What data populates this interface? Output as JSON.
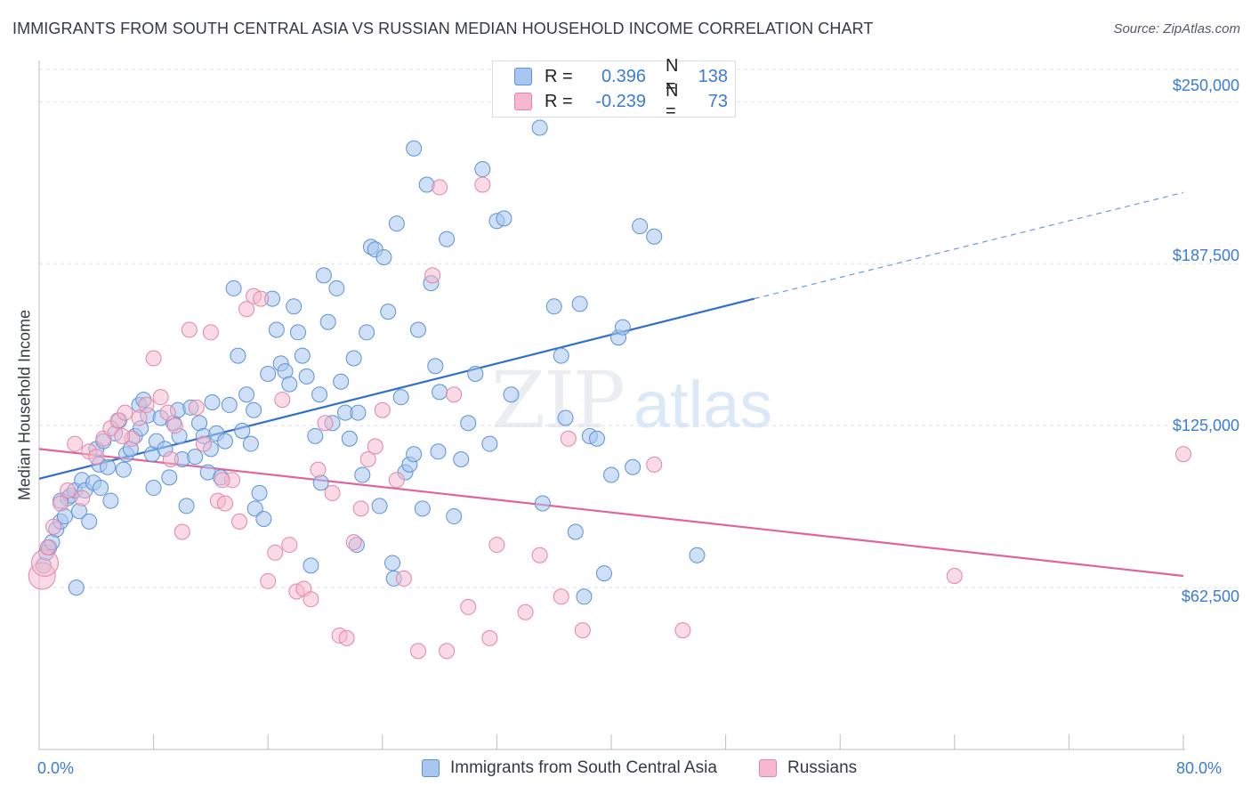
{
  "header": {
    "title": "IMMIGRANTS FROM SOUTH CENTRAL ASIA VS RUSSIAN MEDIAN HOUSEHOLD INCOME CORRELATION CHART",
    "source": "Source: ZipAtlas.com"
  },
  "watermark": {
    "zip": "ZIP",
    "atlas": "atlas"
  },
  "legend": {
    "rows": [
      {
        "r_label": "R =",
        "r_value": "0.396",
        "n_label": "N =",
        "n_value": "138",
        "color": "#a8c6ef"
      },
      {
        "r_label": "R =",
        "r_value": "-0.239",
        "n_label": "N =",
        "n_value": "73",
        "color": "#f5b8cc"
      }
    ]
  },
  "bottom_legend": {
    "items": [
      {
        "label": "Immigrants from South Central Asia",
        "color": "#a8c6ef"
      },
      {
        "label": "Russians",
        "color": "#f5b8cc"
      }
    ]
  },
  "axes": {
    "ylabel": "Median Household Income",
    "y_ticks": [
      "$250,000",
      "$187,500",
      "$125,000",
      "$62,500"
    ],
    "x_min_label": "0.0%",
    "x_max_label": "80.0%"
  },
  "colors": {
    "blue_fill": "#a8c6ef",
    "blue_stroke": "#5b92d8",
    "blue_line": "#2f6fcb",
    "pink_fill": "#f5b8cc",
    "pink_stroke": "#e484a6",
    "pink_line": "#e0659a",
    "grid": "#dde1e7",
    "tick_text": "#3a7bd5"
  },
  "chart_data": {
    "type": "scatter",
    "title": "IMMIGRANTS FROM SOUTH CENTRAL ASIA VS RUSSIAN MEDIAN HOUSEHOLD INCOME CORRELATION CHART",
    "xlabel": "",
    "ylabel": "Median Household Income",
    "xlim": [
      0,
      80
    ],
    "ylim": [
      0,
      262500
    ],
    "y_ticks": [
      62500,
      125000,
      187500,
      250000
    ],
    "grid": true,
    "legend_position": "top-center",
    "series": [
      {
        "name": "Immigrants from South Central Asia",
        "r": 0.396,
        "n": 138,
        "trend": {
          "x": [
            0,
            50
          ],
          "y": [
            104500,
            174000
          ],
          "dashed_extension": {
            "x": [
              50,
              80
            ],
            "y": [
              174000,
              215000
            ]
          }
        },
        "points": [
          [
            0.3,
            71000
          ],
          [
            0.5,
            76000
          ],
          [
            0.7,
            78000
          ],
          [
            0.9,
            80000
          ],
          [
            1.2,
            85000
          ],
          [
            1.5,
            88000
          ],
          [
            1.8,
            90000
          ],
          [
            2.0,
            97000
          ],
          [
            2.2,
            98000
          ],
          [
            2.5,
            100000
          ],
          [
            2.8,
            92000
          ],
          [
            3.0,
            104000
          ],
          [
            3.2,
            100000
          ],
          [
            3.5,
            88000
          ],
          [
            3.8,
            103000
          ],
          [
            4.0,
            116000
          ],
          [
            4.2,
            110000
          ],
          [
            4.5,
            119000
          ],
          [
            4.8,
            109000
          ],
          [
            5.0,
            96000
          ],
          [
            5.3,
            122000
          ],
          [
            5.6,
            127000
          ],
          [
            5.9,
            108000
          ],
          [
            6.1,
            114000
          ],
          [
            6.4,
            116000
          ],
          [
            6.7,
            121000
          ],
          [
            7.0,
            133000
          ],
          [
            7.3,
            135000
          ],
          [
            7.6,
            129000
          ],
          [
            7.9,
            114000
          ],
          [
            8.2,
            119000
          ],
          [
            8.5,
            128000
          ],
          [
            8.8,
            116000
          ],
          [
            9.1,
            105000
          ],
          [
            9.4,
            126000
          ],
          [
            9.7,
            131000
          ],
          [
            10.0,
            112000
          ],
          [
            10.3,
            94000
          ],
          [
            10.6,
            132000
          ],
          [
            10.9,
            113000
          ],
          [
            11.2,
            126000
          ],
          [
            11.5,
            121000
          ],
          [
            11.8,
            107000
          ],
          [
            12.1,
            134000
          ],
          [
            12.4,
            122000
          ],
          [
            12.7,
            105000
          ],
          [
            13.0,
            119000
          ],
          [
            13.3,
            133000
          ],
          [
            13.6,
            178000
          ],
          [
            13.9,
            152000
          ],
          [
            14.2,
            123000
          ],
          [
            14.5,
            137000
          ],
          [
            14.8,
            118000
          ],
          [
            15.1,
            93000
          ],
          [
            15.4,
            99000
          ],
          [
            15.7,
            89000
          ],
          [
            16.0,
            145000
          ],
          [
            16.3,
            174000
          ],
          [
            16.6,
            162000
          ],
          [
            16.9,
            149000
          ],
          [
            17.2,
            146000
          ],
          [
            17.5,
            141000
          ],
          [
            17.8,
            171000
          ],
          [
            18.1,
            161000
          ],
          [
            18.4,
            152000
          ],
          [
            18.7,
            144000
          ],
          [
            19.0,
            71000
          ],
          [
            19.3,
            121000
          ],
          [
            19.6,
            137000
          ],
          [
            19.9,
            183000
          ],
          [
            20.2,
            165000
          ],
          [
            20.5,
            126000
          ],
          [
            20.8,
            178000
          ],
          [
            21.1,
            142000
          ],
          [
            21.4,
            130000
          ],
          [
            21.7,
            120000
          ],
          [
            22.0,
            151000
          ],
          [
            22.3,
            130000
          ],
          [
            22.6,
            106000
          ],
          [
            22.9,
            161000
          ],
          [
            23.2,
            194000
          ],
          [
            23.5,
            193000
          ],
          [
            23.8,
            94000
          ],
          [
            24.1,
            190000
          ],
          [
            24.4,
            169000
          ],
          [
            24.7,
            72000
          ],
          [
            25.0,
            203000
          ],
          [
            25.3,
            136000
          ],
          [
            25.6,
            107000
          ],
          [
            25.9,
            110000
          ],
          [
            26.2,
            114000
          ],
          [
            26.5,
            162000
          ],
          [
            26.8,
            93000
          ],
          [
            27.1,
            218000
          ],
          [
            27.4,
            180000
          ],
          [
            27.7,
            148000
          ],
          [
            28.0,
            138000
          ],
          [
            28.5,
            197000
          ],
          [
            29.0,
            90000
          ],
          [
            29.5,
            112000
          ],
          [
            30.0,
            126000
          ],
          [
            30.5,
            145000
          ],
          [
            31.0,
            224000
          ],
          [
            31.5,
            118000
          ],
          [
            32.0,
            204000
          ],
          [
            32.5,
            205000
          ],
          [
            33.0,
            137000
          ],
          [
            35.0,
            240000
          ],
          [
            36.0,
            171000
          ],
          [
            36.5,
            152000
          ],
          [
            37.5,
            84000
          ],
          [
            37.8,
            172000
          ],
          [
            38.1,
            59000
          ],
          [
            38.5,
            121000
          ],
          [
            39.0,
            120000
          ],
          [
            39.5,
            68000
          ],
          [
            40.0,
            106000
          ],
          [
            40.5,
            159000
          ],
          [
            40.8,
            163000
          ],
          [
            41.5,
            109000
          ],
          [
            42.0,
            202000
          ],
          [
            43.0,
            198000
          ],
          [
            46.0,
            75000
          ],
          [
            2.6,
            62500
          ],
          [
            26.2,
            232000
          ],
          [
            1.5,
            96000
          ],
          [
            4.3,
            101000
          ],
          [
            7.1,
            124000
          ],
          [
            9.8,
            121000
          ],
          [
            12.0,
            116000
          ],
          [
            15.0,
            131000
          ],
          [
            19.7,
            103000
          ],
          [
            22.2,
            79000
          ],
          [
            24.8,
            66000
          ],
          [
            27.9,
            115000
          ],
          [
            35.2,
            95000
          ],
          [
            36.8,
            128000
          ],
          [
            8.0,
            101000
          ]
        ]
      },
      {
        "name": "Russians",
        "r": -0.239,
        "n": 73,
        "trend": {
          "x": [
            0,
            80
          ],
          "y": [
            116000,
            67000
          ]
        },
        "points": [
          [
            0.2,
            67000
          ],
          [
            0.4,
            72000
          ],
          [
            0.6,
            78000
          ],
          [
            1.0,
            86000
          ],
          [
            1.5,
            95000
          ],
          [
            2.0,
            100000
          ],
          [
            2.5,
            118000
          ],
          [
            3.0,
            97000
          ],
          [
            3.5,
            115000
          ],
          [
            4.0,
            113000
          ],
          [
            4.5,
            120000
          ],
          [
            5.0,
            124000
          ],
          [
            5.5,
            127000
          ],
          [
            6.0,
            130000
          ],
          [
            6.5,
            120000
          ],
          [
            7.0,
            128000
          ],
          [
            7.5,
            133000
          ],
          [
            8.0,
            151000
          ],
          [
            8.5,
            136000
          ],
          [
            9.0,
            130000
          ],
          [
            9.5,
            125000
          ],
          [
            10.0,
            84000
          ],
          [
            10.5,
            162000
          ],
          [
            11.0,
            132000
          ],
          [
            11.5,
            118000
          ],
          [
            12.0,
            161000
          ],
          [
            12.5,
            96000
          ],
          [
            13.0,
            95000
          ],
          [
            13.5,
            104000
          ],
          [
            14.0,
            88000
          ],
          [
            14.5,
            170000
          ],
          [
            15.0,
            175000
          ],
          [
            15.5,
            174000
          ],
          [
            16.0,
            65000
          ],
          [
            16.5,
            76000
          ],
          [
            17.0,
            135000
          ],
          [
            17.5,
            79000
          ],
          [
            18.0,
            61000
          ],
          [
            18.5,
            62000
          ],
          [
            19.0,
            58000
          ],
          [
            19.5,
            108000
          ],
          [
            20.0,
            126000
          ],
          [
            20.5,
            99000
          ],
          [
            21.0,
            44000
          ],
          [
            21.5,
            43000
          ],
          [
            22.0,
            80000
          ],
          [
            22.5,
            93000
          ],
          [
            23.0,
            112000
          ],
          [
            23.5,
            117000
          ],
          [
            24.0,
            131000
          ],
          [
            25.0,
            104000
          ],
          [
            25.5,
            66000
          ],
          [
            26.5,
            38000
          ],
          [
            27.5,
            183000
          ],
          [
            28.0,
            217000
          ],
          [
            28.5,
            38000
          ],
          [
            29.0,
            137000
          ],
          [
            30.0,
            55000
          ],
          [
            31.0,
            218000
          ],
          [
            31.5,
            43000
          ],
          [
            32.0,
            79000
          ],
          [
            34.0,
            53000
          ],
          [
            35.0,
            75000
          ],
          [
            36.5,
            59000
          ],
          [
            37.0,
            120000
          ],
          [
            38.0,
            46000
          ],
          [
            43.0,
            110000
          ],
          [
            45.0,
            46000
          ],
          [
            64.0,
            67000
          ],
          [
            80.0,
            114000
          ],
          [
            5.8,
            121000
          ],
          [
            9.2,
            112000
          ],
          [
            12.8,
            104000
          ]
        ]
      }
    ]
  }
}
